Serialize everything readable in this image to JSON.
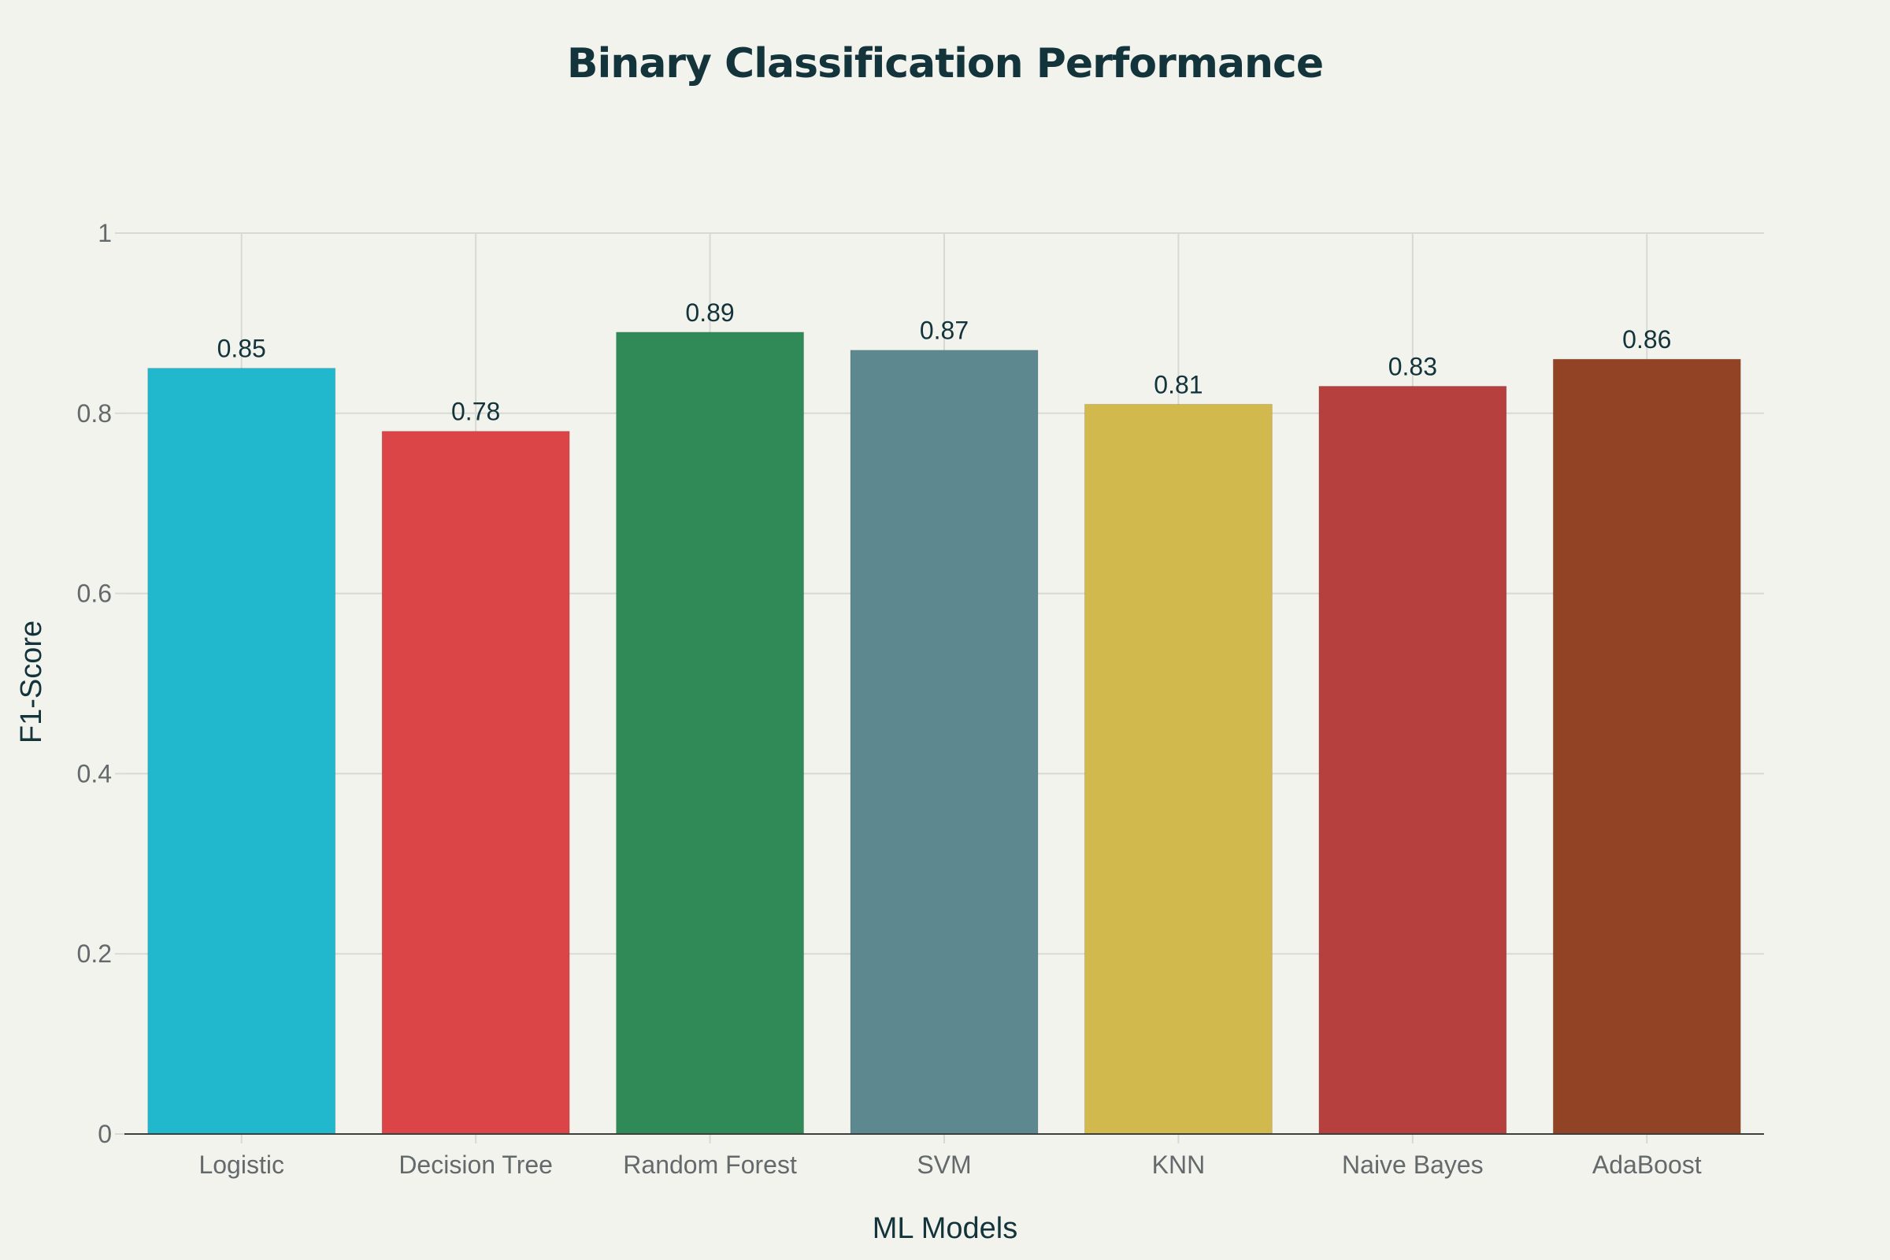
{
  "chart_data": {
    "type": "bar",
    "title": "Binary Classification Performance",
    "xlabel": "ML Models",
    "ylabel": "F1-Score",
    "categories": [
      "Logistic",
      "Decision Tree",
      "Random Forest",
      "SVM",
      "KNN",
      "Naive Bayes",
      "AdaBoost"
    ],
    "values": [
      0.85,
      0.78,
      0.89,
      0.87,
      0.81,
      0.83,
      0.86
    ],
    "data_labels": [
      "0.85",
      "0.78",
      "0.89",
      "0.87",
      "0.81",
      "0.83",
      "0.86"
    ],
    "colors": [
      "#21b8cd",
      "#db4547",
      "#2f8a58",
      "#5e8890",
      "#d2b94e",
      "#b5403d",
      "#924326"
    ],
    "ylim": [
      0,
      1
    ],
    "yticks": [
      0,
      0.2,
      0.4,
      0.6,
      0.8,
      1
    ],
    "ytick_labels": [
      "0",
      "0.2",
      "0.4",
      "0.6",
      "0.8",
      "1"
    ],
    "grid": true,
    "legend": "none"
  }
}
